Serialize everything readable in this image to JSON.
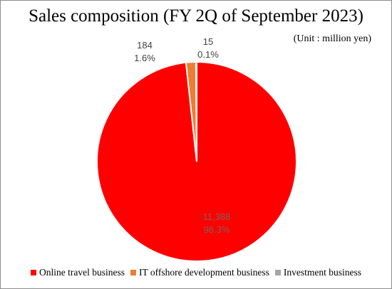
{
  "chart_data": {
    "type": "pie",
    "title": "Sales composition (FY 2Q of September 2023)",
    "subtitle": "(Unit : million yen)",
    "categories": [
      "Online travel business",
      "IT offshore development business",
      "Investment business"
    ],
    "values": [
      11388,
      184,
      15
    ],
    "value_labels": [
      "11,388",
      "184",
      "15"
    ],
    "percent_labels": [
      "98.3%",
      "1.6%",
      "0.1%"
    ],
    "colors": [
      "#ff0000",
      "#ed7d31",
      "#a5a5a5"
    ],
    "legend_position": "bottom"
  }
}
